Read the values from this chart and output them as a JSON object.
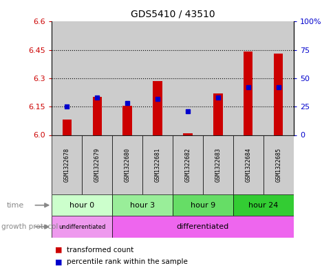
{
  "title": "GDS5410 / 43510",
  "samples": [
    "GSM1322678",
    "GSM1322679",
    "GSM1322680",
    "GSM1322681",
    "GSM1322682",
    "GSM1322683",
    "GSM1322684",
    "GSM1322685"
  ],
  "red_values": [
    6.08,
    6.2,
    6.155,
    6.285,
    6.01,
    6.22,
    6.44,
    6.43
  ],
  "blue_values_pct": [
    25,
    33,
    28,
    32,
    21,
    33,
    42,
    42
  ],
  "ylim": [
    6.0,
    6.6
  ],
  "y_ticks_left": [
    6.0,
    6.15,
    6.3,
    6.45,
    6.6
  ],
  "y_ticks_right": [
    0,
    25,
    50,
    75,
    100
  ],
  "y_ticks_right_labels": [
    "0",
    "25",
    "50",
    "75",
    "100%"
  ],
  "red_color": "#cc0000",
  "blue_color": "#0000cc",
  "bar_base": 6.0,
  "bar_width": 0.3,
  "time_groups": [
    {
      "label": "hour 0",
      "start": 0,
      "end": 2,
      "color": "#ccffcc"
    },
    {
      "label": "hour 3",
      "start": 2,
      "end": 4,
      "color": "#99ee99"
    },
    {
      "label": "hour 9",
      "start": 4,
      "end": 6,
      "color": "#66dd66"
    },
    {
      "label": "hour 24",
      "start": 6,
      "end": 8,
      "color": "#33cc33"
    }
  ],
  "protocol_undiff": {
    "label": "undifferentiated",
    "start": 0,
    "end": 2,
    "color": "#ee99ee"
  },
  "protocol_diff": {
    "label": "differentiated",
    "start": 2,
    "end": 8,
    "color": "#ee66ee"
  },
  "sample_bg": "#cccccc",
  "chart_bg": "#ffffff",
  "bg_color": "#ffffff",
  "left_label_color": "#cc0000",
  "right_label_color": "#0000cc"
}
